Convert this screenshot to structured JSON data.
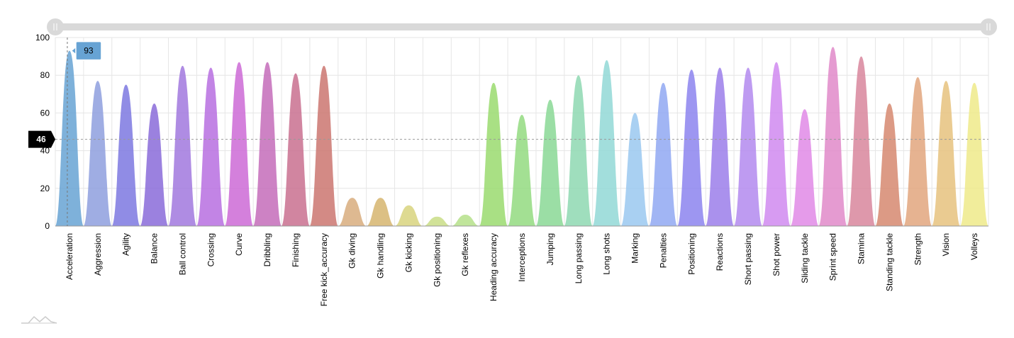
{
  "chart_data": {
    "type": "area",
    "title": "",
    "xlabel": "",
    "ylabel": "",
    "ylim": [
      0,
      100
    ],
    "yticks": [
      "0",
      "20",
      "40",
      "60",
      "80",
      "100"
    ],
    "grid": true,
    "legend": "none",
    "categories": [
      "Acceleration",
      "Aggression",
      "Agility",
      "Balance",
      "Ball control",
      "Crossing",
      "Curve",
      "Dribbling",
      "Finishing",
      "Free kick_accuracy",
      "Gk diving",
      "Gk handling",
      "Gk kicking",
      "Gk positioning",
      "Gk reflexes",
      "Heading accuracy",
      "Interceptions",
      "Jumping",
      "Long passing",
      "Long shots",
      "Marking",
      "Penalties",
      "Positioning",
      "Reactions",
      "Short passing",
      "Shot power",
      "Sliding tackle",
      "Sprint speed",
      "Stamina",
      "Standing tackle",
      "Strength",
      "Vision",
      "Volleys"
    ],
    "values": [
      93,
      77,
      75,
      65,
      85,
      84,
      87,
      87,
      81,
      85,
      15,
      15,
      11,
      5,
      6,
      76,
      59,
      67,
      80,
      88,
      60,
      76,
      83,
      84,
      84,
      87,
      62,
      95,
      90,
      65,
      79,
      77,
      76
    ],
    "colors": [
      "#67a3d4",
      "#8e9fde",
      "#7d78e0",
      "#8a6bd9",
      "#a178de",
      "#b76ee0",
      "#cc6ad6",
      "#c46cba",
      "#c9708f",
      "#cb7670",
      "#d8ad7e",
      "#d6b56e",
      "#d8d37e",
      "#c9dd86",
      "#b5e08a",
      "#9ada6e",
      "#93da80",
      "#8ad895",
      "#8ed8b1",
      "#92d8d6",
      "#9ac8f0",
      "#90a8f2",
      "#8c84ee",
      "#9b7eea",
      "#b38aee",
      "#d08af0",
      "#e08ae6",
      "#e08ac9",
      "#d8869c",
      "#d68870",
      "#e2a67e",
      "#e6c27e",
      "#eeea8a"
    ],
    "cursor": {
      "value": "46"
    },
    "tooltip": {
      "category": "Acceleration",
      "value": "93"
    }
  },
  "icons": {
    "scrollbar_left_grip": "grip-icon",
    "scrollbar_right_grip": "grip-icon",
    "watermark": "chart-logo-icon"
  }
}
